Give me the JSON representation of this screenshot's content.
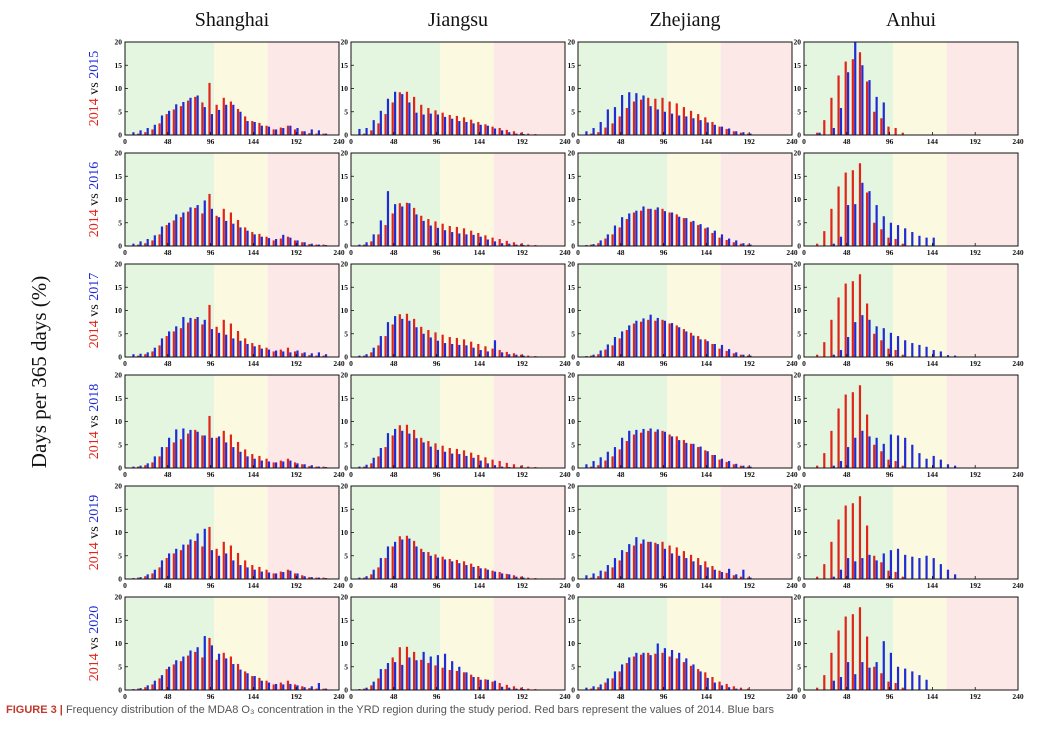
{
  "figure": {
    "y_axis_label": "Days per 365 days (%)",
    "columns": [
      "Shanghai",
      "Jiangsu",
      "Zhejiang",
      "Anhui"
    ],
    "rows": [
      {
        "base": "2014",
        "vs": "vs",
        "comp": "2015"
      },
      {
        "base": "2014",
        "vs": "vs",
        "comp": "2016"
      },
      {
        "base": "2014",
        "vs": "vs",
        "comp": "2017"
      },
      {
        "base": "2014",
        "vs": "vs",
        "comp": "2018"
      },
      {
        "base": "2014",
        "vs": "vs",
        "comp": "2019"
      },
      {
        "base": "2014",
        "vs": "vs",
        "comp": "2020"
      }
    ],
    "caption_label": "FIGURE 3 |",
    "caption_text": "Frequency distribution of the MDA8 O₃ concentration in the YRD region during the study period. Red bars represent the values of 2014. Blue bars"
  },
  "colors": {
    "red": "#e2231a",
    "blue": "#1f2bd6",
    "zone_green": "#e5f6e0",
    "zone_yellow": "#fbfae0",
    "zone_red": "#fde8e8"
  },
  "chart_data": {
    "type": "bar",
    "layout": "6x4 grid of grouped bar panels",
    "x_ticks": [
      "0",
      "48",
      "96",
      "144",
      "192",
      "240"
    ],
    "y_ticks": [
      "0",
      "5",
      "10",
      "15",
      "20"
    ],
    "xlim": [
      0,
      240
    ],
    "ylim": [
      0,
      20
    ],
    "bin_centers": [
      8,
      16,
      24,
      32,
      40,
      48,
      56,
      64,
      72,
      80,
      88,
      96,
      104,
      112,
      120,
      128,
      136,
      144,
      152,
      160,
      168,
      176,
      184,
      192,
      200,
      208,
      216,
      224,
      232
    ],
    "zones": [
      {
        "from": 0,
        "to": 100,
        "color": "zone_green"
      },
      {
        "from": 100,
        "to": 160,
        "color": "zone_yellow"
      },
      {
        "from": 160,
        "to": 240,
        "color": "zone_red"
      }
    ],
    "series_2014": {
      "Shanghai": [
        0,
        0.3,
        0.6,
        1.2,
        2.5,
        4.5,
        5.5,
        6.2,
        7.4,
        8.2,
        7.0,
        11.2,
        6.5,
        8.0,
        7.2,
        5.6,
        4.0,
        3.0,
        2.6,
        2.0,
        1.2,
        1.6,
        2.0,
        1.2,
        0.8,
        0.4,
        0.3,
        0.3,
        0
      ],
      "Jiangsu": [
        0,
        0.3,
        1.0,
        2.5,
        4.5,
        7.0,
        9.2,
        9.3,
        8.2,
        6.5,
        5.8,
        5.3,
        4.8,
        4.3,
        4.1,
        3.8,
        3.3,
        2.8,
        2.3,
        1.8,
        1.5,
        1.1,
        0.8,
        0.5,
        0.3,
        0.2,
        0,
        0,
        0
      ],
      "Zhejiang": [
        0,
        0.3,
        0.6,
        1.6,
        2.5,
        4.0,
        5.8,
        7.2,
        7.6,
        8.0,
        7.8,
        8.0,
        7.2,
        6.8,
        6.0,
        5.2,
        4.5,
        3.8,
        2.8,
        1.8,
        1.3,
        0.8,
        0.5,
        0.3,
        0,
        0,
        0,
        0,
        0
      ],
      "Anhui": [
        0,
        0.5,
        3.2,
        8.0,
        12.8,
        15.8,
        16.3,
        17.8,
        11.5,
        5.0,
        3.6,
        1.8,
        1.5,
        0.5,
        0,
        0,
        0,
        0,
        0,
        0,
        0,
        0,
        0,
        0,
        0,
        0,
        0,
        0,
        0
      ]
    },
    "series_comparison": {
      "Shanghai": [
        [
          0.6,
          1.0,
          1.5,
          2.2,
          4.2,
          5.2,
          6.6,
          7.1,
          8.0,
          8.5,
          6.0,
          4.5,
          5.4,
          6.5,
          6.5,
          5.0,
          3.0,
          2.8,
          2.0,
          1.8,
          1.2,
          1.5,
          2.0,
          1.5,
          0.8,
          1.2,
          1.0,
          0.3,
          0
        ],
        [
          0.5,
          1.0,
          1.5,
          2.3,
          4.2,
          5.0,
          6.8,
          7.2,
          8.3,
          8.8,
          9.8,
          8.0,
          6.2,
          5.4,
          4.8,
          4.0,
          3.3,
          2.5,
          2.0,
          1.7,
          1.5,
          2.4,
          1.8,
          1.2,
          0.8,
          0.5,
          0.3,
          0.2,
          0
        ],
        [
          0.6,
          0.7,
          1.0,
          2.0,
          4.0,
          5.5,
          6.6,
          8.6,
          8.4,
          8.6,
          8.0,
          6.0,
          5.2,
          4.8,
          4.0,
          3.5,
          2.8,
          2.3,
          1.8,
          1.6,
          1.4,
          1.2,
          1.0,
          1.4,
          1.0,
          0.8,
          1.0,
          0.6,
          0
        ],
        [
          0.3,
          0.5,
          1.0,
          2.5,
          4.5,
          6.5,
          8.3,
          8.5,
          8.2,
          7.8,
          7.0,
          6.5,
          6.8,
          5.5,
          4.5,
          3.5,
          2.5,
          2.0,
          1.6,
          1.4,
          1.2,
          1.4,
          1.6,
          1.0,
          0.8,
          0.6,
          0.3,
          0.2,
          0
        ],
        [
          0.2,
          0.4,
          1.0,
          2.0,
          4.0,
          5.5,
          6.5,
          7.4,
          8.5,
          9.8,
          10.8,
          6.2,
          5.0,
          5.5,
          4.0,
          3.0,
          2.5,
          2.0,
          1.6,
          1.4,
          1.2,
          1.5,
          1.8,
          1.2,
          0.6,
          0.4,
          0.3,
          0.2,
          0
        ],
        [
          0.2,
          0.4,
          1.0,
          2.0,
          3.2,
          5.0,
          6.4,
          7.2,
          8.5,
          9.2,
          11.6,
          9.6,
          7.8,
          6.8,
          5.6,
          4.4,
          3.6,
          3.0,
          2.0,
          1.6,
          1.3,
          1.2,
          1.3,
          1.0,
          0.6,
          0.8,
          1.5,
          0.3,
          0
        ]
      ],
      "Jiangsu": [
        [
          1.3,
          1.5,
          3.2,
          5.2,
          7.8,
          9.3,
          8.8,
          7.0,
          4.8,
          4.4,
          4.6,
          4.4,
          3.9,
          3.5,
          3.0,
          2.8,
          2.5,
          2.2,
          2.0,
          1.4,
          1.0,
          0.6,
          0.3,
          0.2,
          0,
          0,
          0,
          0,
          0
        ],
        [
          0.3,
          0.8,
          2.5,
          5.5,
          11.8,
          9.0,
          8.5,
          9.2,
          6.8,
          5.4,
          4.4,
          3.9,
          3.4,
          3.0,
          2.7,
          2.5,
          2.4,
          2.0,
          1.4,
          1.0,
          0.6,
          0.5,
          0.3,
          0.2,
          0,
          0,
          0,
          0,
          0
        ],
        [
          0.3,
          0.6,
          2.0,
          4.5,
          7.5,
          8.8,
          8.2,
          7.8,
          6.4,
          5.0,
          4.2,
          3.5,
          3.0,
          2.8,
          2.6,
          2.5,
          2.0,
          1.5,
          1.2,
          3.6,
          1.0,
          0.6,
          0.5,
          0.3,
          0,
          0,
          0,
          0,
          0
        ],
        [
          0.3,
          0.7,
          2.2,
          4.3,
          7.5,
          8.4,
          8.0,
          7.4,
          6.4,
          5.5,
          4.6,
          3.9,
          3.5,
          3.1,
          3.0,
          2.6,
          2.2,
          1.6,
          1.0,
          0.6,
          0.3,
          0.2,
          0,
          0,
          0,
          0,
          0,
          0,
          0
        ],
        [
          0.3,
          0.6,
          2.0,
          4.5,
          7.0,
          8.0,
          8.5,
          8.7,
          7.0,
          5.8,
          5.0,
          4.6,
          4.2,
          3.8,
          3.4,
          3.0,
          2.6,
          2.3,
          2.0,
          1.6,
          1.2,
          1.0,
          0.5,
          0.3,
          0,
          0,
          0,
          0,
          0
        ],
        [
          0.2,
          0.5,
          1.8,
          4.5,
          5.8,
          6.0,
          5.4,
          7.0,
          6.4,
          8.2,
          7.2,
          7.5,
          7.8,
          6.2,
          5.0,
          3.8,
          2.8,
          2.2,
          2.2,
          2.0,
          0.7,
          0.5,
          0.3,
          0.2,
          0,
          0,
          0,
          0,
          0
        ]
      ],
      "Zhejiang": [
        [
          0.8,
          1.5,
          2.8,
          5.5,
          6.0,
          8.6,
          9.2,
          9.0,
          8.5,
          6.2,
          5.5,
          5.0,
          4.6,
          4.2,
          4.0,
          3.6,
          3.2,
          2.7,
          2.2,
          1.8,
          1.4,
          0.8,
          0.6,
          0.3,
          0,
          0,
          0,
          0,
          0
        ],
        [
          0.2,
          0.4,
          1.2,
          2.5,
          4.4,
          6.2,
          7.0,
          7.6,
          8.5,
          8.0,
          8.3,
          7.5,
          7.2,
          6.3,
          6.0,
          5.4,
          4.7,
          4.0,
          3.3,
          2.5,
          1.6,
          1.2,
          0.6,
          0.3,
          0,
          0,
          0,
          0,
          0
        ],
        [
          0.2,
          0.5,
          1.4,
          2.7,
          4.3,
          5.5,
          6.8,
          7.8,
          8.3,
          9.1,
          8.4,
          7.8,
          7.3,
          6.4,
          5.5,
          4.6,
          3.8,
          3.4,
          2.8,
          2.6,
          1.7,
          1.0,
          0.5,
          0.3,
          0,
          0,
          0,
          0,
          0
        ],
        [
          0.8,
          1.5,
          2.3,
          3.5,
          4.5,
          6.5,
          8.0,
          8.2,
          8.4,
          8.5,
          8.3,
          7.8,
          6.8,
          6.0,
          5.4,
          5.2,
          4.6,
          3.6,
          2.8,
          2.0,
          1.5,
          0.9,
          0.5,
          0.3,
          0,
          0,
          0,
          0,
          0
        ],
        [
          0.8,
          1.2,
          1.8,
          3.0,
          4.5,
          6.2,
          7.5,
          9.0,
          8.5,
          8.0,
          7.5,
          6.5,
          5.5,
          5.0,
          4.5,
          3.8,
          3.0,
          2.5,
          2.0,
          1.5,
          2.2,
          1.0,
          2.0,
          0.3,
          0,
          0,
          0,
          0,
          0
        ],
        [
          0.5,
          0.8,
          1.2,
          2.5,
          4.0,
          5.5,
          7.0,
          8.0,
          8.0,
          7.5,
          10.0,
          9.0,
          8.6,
          8.0,
          6.8,
          5.5,
          4.0,
          2.6,
          1.6,
          1.0,
          0.6,
          0.3,
          0,
          0,
          0,
          0,
          0,
          0,
          0
        ]
      ],
      "Anhui": [
        [
          0,
          0,
          0,
          0,
          0,
          0,
          0,
          0,
          0,
          0,
          0,
          0,
          0,
          0,
          0,
          0,
          0,
          0,
          0,
          0,
          0,
          0,
          0,
          0,
          0,
          0,
          0,
          0,
          0
        ],
        [
          0,
          0,
          0,
          0,
          0,
          0,
          0,
          0,
          0,
          0,
          0,
          0,
          0,
          0,
          0,
          0,
          0,
          0,
          0,
          0,
          0,
          0,
          0,
          0,
          0,
          0,
          0,
          0,
          0
        ],
        [
          0,
          0,
          0,
          0,
          0,
          0,
          0,
          0,
          0,
          0,
          0,
          0,
          0,
          0,
          0,
          0,
          0,
          0,
          0,
          0,
          0,
          0,
          0,
          0,
          0,
          0,
          0,
          0,
          0
        ],
        [
          0,
          0,
          0,
          0,
          0,
          0,
          0,
          0,
          0,
          0,
          0,
          0,
          0,
          0,
          0,
          0,
          0,
          0,
          0,
          0,
          0,
          0,
          0,
          0,
          0,
          0,
          0,
          0,
          0
        ],
        [
          0,
          0,
          0,
          0,
          0,
          0,
          0,
          0,
          0,
          0,
          0,
          0,
          0,
          0,
          0,
          0,
          0,
          0,
          0,
          0,
          0,
          0,
          0,
          0,
          0,
          0,
          0,
          0,
          0
        ],
        [
          0,
          0,
          0,
          0,
          0,
          0,
          0,
          0,
          0,
          0,
          0,
          0,
          0,
          0,
          0,
          0,
          0,
          0,
          0,
          0,
          0,
          0,
          0,
          0,
          0,
          0,
          0,
          0,
          0
        ]
      ]
    },
    "anhui_comparison": [
      [
        0,
        0.5,
        0,
        1.5,
        5.8,
        13.5,
        20.0,
        15.0,
        11.8,
        8.2,
        7.0,
        0,
        0,
        0,
        0,
        0,
        0,
        0,
        0,
        0,
        0,
        0,
        0,
        0,
        0,
        0,
        0,
        0,
        0
      ],
      [
        0,
        0,
        0,
        0.5,
        2.0,
        8.8,
        9.0,
        13.6,
        11.8,
        8.8,
        6.4,
        5.0,
        4.5,
        3.8,
        3.0,
        2.2,
        1.8,
        1.8,
        0,
        0,
        0,
        0,
        0,
        0,
        0,
        0,
        0,
        0,
        0
      ],
      [
        0,
        0,
        0,
        0.5,
        1.5,
        4.3,
        7.5,
        9.0,
        8.0,
        6.6,
        6.2,
        5.2,
        4.5,
        3.6,
        3.0,
        2.6,
        2.2,
        1.5,
        1.2,
        0.4,
        0.3,
        0,
        0,
        0,
        0,
        0,
        0,
        0,
        0
      ],
      [
        0,
        0,
        0,
        0.5,
        1.5,
        4.5,
        6.5,
        8.0,
        6.8,
        6.5,
        5.2,
        7.2,
        7.0,
        6.5,
        5.0,
        3.2,
        2.0,
        2.6,
        1.8,
        0.8,
        0.5,
        0,
        0,
        0,
        0,
        0,
        0,
        0,
        0
      ],
      [
        0,
        0,
        0,
        0.5,
        2.0,
        4.5,
        3.8,
        4.5,
        5.2,
        4.0,
        5.5,
        6.2,
        6.5,
        5.2,
        4.8,
        4.5,
        5.0,
        4.5,
        3.2,
        2.0,
        1.0,
        0,
        0,
        0,
        0,
        0,
        0,
        0,
        0
      ],
      [
        0,
        0,
        0,
        2.0,
        2.8,
        6.0,
        3.4,
        6.0,
        4.8,
        6.0,
        10.5,
        8.0,
        5.0,
        4.6,
        4.0,
        3.2,
        2.2,
        0,
        0,
        0,
        0,
        0,
        0,
        0,
        0,
        0,
        0,
        0,
        0
      ]
    ]
  }
}
